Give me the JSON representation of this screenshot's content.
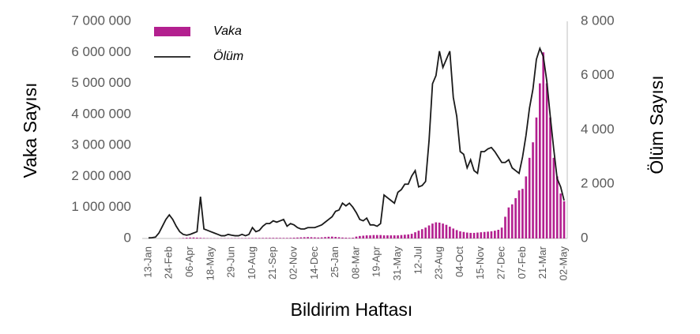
{
  "chart_data": {
    "type": "bar-line",
    "x_label": "Bildirim Haftası",
    "y_label": "Vaka Sayısı",
    "y2_label": "Ölüm Sayısı",
    "legend": "upper left",
    "categories": [
      "13-Jan",
      null,
      null,
      null,
      null,
      null,
      "24-Feb",
      null,
      null,
      null,
      null,
      null,
      "06-Apr",
      null,
      null,
      null,
      null,
      null,
      "18-May",
      null,
      null,
      null,
      null,
      null,
      "29-Jun",
      null,
      null,
      null,
      null,
      null,
      "10-Aug",
      null,
      null,
      null,
      null,
      null,
      "21-Sep",
      null,
      null,
      null,
      null,
      null,
      "02-Nov",
      null,
      null,
      null,
      null,
      null,
      "14-Dec",
      null,
      null,
      null,
      null,
      null,
      "25-Jan",
      null,
      null,
      null,
      null,
      null,
      "08-Mar",
      null,
      null,
      null,
      null,
      null,
      "19-Apr",
      null,
      null,
      null,
      null,
      null,
      "31-May",
      null,
      null,
      null,
      null,
      null,
      "12-Jul",
      null,
      null,
      null,
      null,
      null,
      "23-Aug",
      null,
      null,
      null,
      null,
      null,
      "04-Oct",
      null,
      null,
      null,
      null,
      null,
      "15-Nov",
      null,
      null,
      null,
      null,
      null,
      "27-Dec",
      null,
      null,
      null,
      null,
      null,
      "07-Feb",
      null,
      null,
      null,
      null,
      null,
      "21-Mar",
      null,
      null,
      null,
      null,
      null,
      "02-May"
    ],
    "series": [
      {
        "name": "Vaka",
        "type": "bar",
        "color": "#b3208f",
        "values": [
          0,
          0,
          0,
          0,
          0,
          0,
          0,
          0,
          0,
          5000,
          15000,
          25000,
          30000,
          30000,
          25000,
          20000,
          15000,
          10000,
          8000,
          8000,
          7000,
          7000,
          8000,
          9000,
          10000,
          10000,
          11000,
          12000,
          13000,
          14000,
          15000,
          16000,
          17000,
          18000,
          19000,
          20000,
          20000,
          20000,
          19000,
          18000,
          18000,
          20000,
          25000,
          30000,
          35000,
          40000,
          45000,
          40000,
          35000,
          30000,
          35000,
          45000,
          55000,
          60000,
          50000,
          40000,
          30000,
          25000,
          20000,
          25000,
          60000,
          80000,
          90000,
          100000,
          100000,
          110000,
          110000,
          110000,
          100000,
          100000,
          100000,
          100000,
          100000,
          110000,
          120000,
          130000,
          150000,
          200000,
          250000,
          300000,
          350000,
          420000,
          480000,
          520000,
          510000,
          480000,
          440000,
          380000,
          320000,
          270000,
          230000,
          210000,
          190000,
          180000,
          180000,
          190000,
          200000,
          210000,
          220000,
          230000,
          250000,
          280000,
          350000,
          700000,
          1000000,
          1100000,
          1300000,
          1550000,
          1600000,
          2000000,
          2600000,
          3100000,
          3900000,
          5000000,
          6000000,
          5000000,
          3900000,
          2600000,
          2000000,
          1450000,
          1200000
        ]
      },
      {
        "name": "Ölüm",
        "type": "line",
        "axis": "y2",
        "color": "#1a1a1a",
        "values": [
          20,
          30,
          50,
          200,
          450,
          700,
          870,
          700,
          450,
          250,
          150,
          120,
          150,
          200,
          250,
          1540,
          350,
          300,
          250,
          200,
          150,
          100,
          100,
          150,
          120,
          100,
          100,
          150,
          100,
          150,
          400,
          250,
          300,
          450,
          550,
          550,
          650,
          600,
          650,
          700,
          450,
          550,
          500,
          400,
          350,
          350,
          400,
          400,
          400,
          450,
          500,
          600,
          700,
          800,
          1000,
          1050,
          1300,
          1200,
          1300,
          1150,
          950,
          700,
          650,
          750,
          500,
          500,
          450,
          550,
          1600,
          1500,
          1400,
          1300,
          1700,
          1800,
          2000,
          2000,
          2300,
          2500,
          1900,
          1950,
          2100,
          3600,
          5700,
          6000,
          6900,
          6300,
          6600,
          6900,
          5200,
          4500,
          3200,
          3100,
          2600,
          2900,
          2500,
          2400,
          3200,
          3200,
          3300,
          3350,
          3200,
          3000,
          2800,
          2800,
          2900,
          2600,
          2500,
          2400,
          3000,
          3800,
          4800,
          5500,
          6600,
          7000,
          6700,
          5800,
          4500,
          3300,
          2200,
          1900,
          1400
        ]
      }
    ],
    "ylim": [
      0,
      7000000
    ],
    "yticks": [
      0,
      {
        "value": 1000000,
        "label": "1 000 000"
      },
      {
        "value": 2000000,
        "label": "2 000 000"
      },
      {
        "value": 3000000,
        "label": "3 000 000"
      },
      {
        "value": 4000000,
        "label": "4 000 000"
      },
      {
        "value": 5000000,
        "label": "5 000 000"
      },
      {
        "value": 6000000,
        "label": "6 000 000"
      },
      {
        "value": 7000000,
        "label": "7 000 000"
      }
    ],
    "y2lim": [
      0,
      8000
    ],
    "y2ticks": [
      0,
      {
        "value": 2000,
        "label": "2 000"
      },
      {
        "value": 4000,
        "label": "4 000"
      },
      {
        "value": 6000,
        "label": "6 000"
      },
      {
        "value": 8000,
        "label": "8 000"
      }
    ]
  }
}
